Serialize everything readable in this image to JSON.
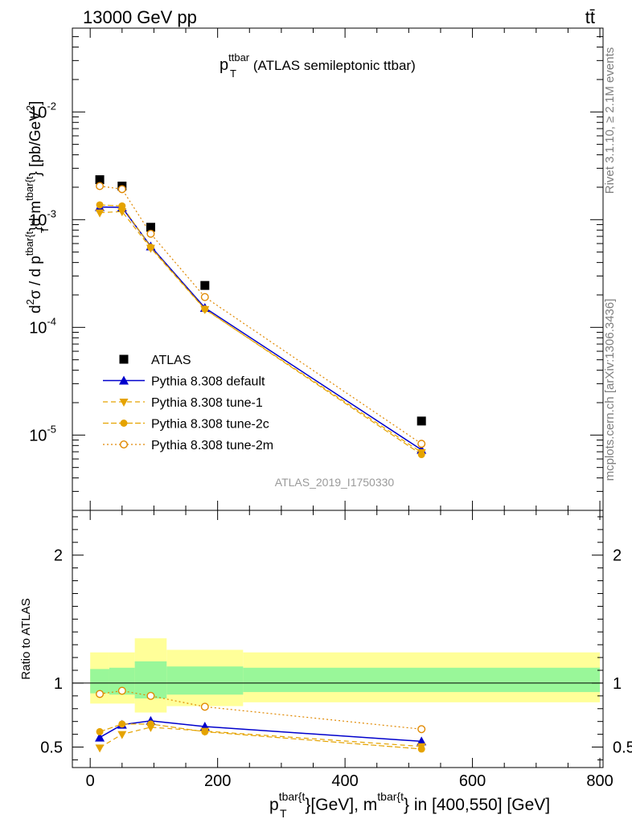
{
  "header": {
    "left": "13000 GeV pp",
    "right": "tt̄"
  },
  "side_labels": {
    "rivet": "Rivet 3.1.10, ≥ 2.1M events",
    "mcplots": "mcplots.cern.ch [arXiv:1306.3436]"
  },
  "colors": {
    "atlas": "#000000",
    "default": "#0000cc",
    "tune": "#e5a300",
    "tune2m": "#e08800",
    "band_inner": "#99f799",
    "band_outer": "#ffff99"
  },
  "chart_data": [
    {
      "type": "scatter",
      "title_main": "p",
      "title_sup": "ttbar",
      "title_sub": "T",
      "title_rest": " (ATLAS semileptonic ttbar)",
      "analysis_tag": "ATLAS_2019_I1750330",
      "y_scale": "log",
      "ylim": [
        2e-06,
        0.06
      ],
      "xlim": [
        -28,
        805
      ],
      "y_tick_labels": [
        "10",
        "10",
        "10",
        "10"
      ],
      "y_tick_exps": [
        "-5",
        "-4",
        "-3",
        "-2"
      ],
      "ylabel": {
        "p1": "d",
        "s1": "2",
        "p2": "σ / d p",
        "s2": "tbar{t",
        "sub2": "T",
        "p3": "}d m",
        "s3": "tbar{t",
        "p4": "} [pb/GeV",
        "s4": "2",
        "p5": "]"
      },
      "legend_position": "lower-left",
      "x": [
        15,
        50,
        95,
        180,
        520
      ],
      "series": [
        {
          "name": "ATLAS",
          "key": "atlas",
          "values": [
            0.00235,
            0.00205,
            0.00085,
            0.000245,
            1.35e-05
          ]
        },
        {
          "name": "Pythia 8.308 default",
          "key": "default",
          "values": [
            0.00131,
            0.0013,
            0.000565,
            0.000152,
            7.3e-06
          ]
        },
        {
          "name": "Pythia 8.308 tune-1",
          "key": "tune1",
          "values": [
            0.00116,
            0.00119,
            0.000545,
            0.000147,
            6.9e-06
          ]
        },
        {
          "name": "Pythia 8.308 tune-2c",
          "key": "tune2c",
          "values": [
            0.00137,
            0.00134,
            0.000555,
            0.000148,
            6.6e-06
          ]
        },
        {
          "name": "Pythia 8.308 tune-2m",
          "key": "tune2m",
          "values": [
            0.00205,
            0.00192,
            0.00074,
            0.000191,
            8.3e-06
          ]
        }
      ]
    },
    {
      "type": "line",
      "ylabel": "Ratio to ATLAS",
      "ylim": [
        0.34,
        2.35
      ],
      "xlim": [
        -28,
        805
      ],
      "y_ticks": [
        0.5,
        1,
        2
      ],
      "y_tick_labels": [
        "0.5",
        "1",
        "2"
      ],
      "x_ticks": [
        0,
        200,
        400,
        600,
        800
      ],
      "x_tick_labels": [
        "0",
        "200",
        "400",
        "600",
        "800"
      ],
      "xlabel": {
        "p1": "p",
        "s1": "tbar{t",
        "sub1": "T",
        "p2": "}[GeV], m",
        "s2": "tbar{t",
        "p3": "} in [400,550] [GeV]"
      },
      "x": [
        15,
        50,
        95,
        180,
        520
      ],
      "bands": [
        {
          "x_from": 0,
          "x_to": 30,
          "inner": [
            0.92,
            1.11
          ],
          "outer": [
            0.84,
            1.24
          ]
        },
        {
          "x_from": 30,
          "x_to": 70,
          "inner": [
            0.91,
            1.12
          ],
          "outer": [
            0.84,
            1.24
          ]
        },
        {
          "x_from": 70,
          "x_to": 120,
          "inner": [
            0.88,
            1.17
          ],
          "outer": [
            0.77,
            1.35
          ]
        },
        {
          "x_from": 120,
          "x_to": 240,
          "inner": [
            0.91,
            1.13
          ],
          "outer": [
            0.82,
            1.26
          ]
        },
        {
          "x_from": 240,
          "x_to": 800,
          "inner": [
            0.93,
            1.12
          ],
          "outer": [
            0.85,
            1.24
          ]
        }
      ],
      "series": [
        {
          "name": "Pythia 8.308 default",
          "key": "default",
          "values": [
            0.575,
            0.675,
            0.705,
            0.66,
            0.545
          ]
        },
        {
          "name": "Pythia 8.308 tune-1",
          "key": "tune1",
          "values": [
            0.495,
            0.6,
            0.655,
            0.625,
            0.505
          ]
        },
        {
          "name": "Pythia 8.308 tune-2c",
          "key": "tune2c",
          "values": [
            0.62,
            0.68,
            0.68,
            0.62,
            0.485
          ]
        },
        {
          "name": "Pythia 8.308 tune-2m",
          "key": "tune2m",
          "values": [
            0.915,
            0.94,
            0.9,
            0.815,
            0.64
          ]
        }
      ]
    }
  ]
}
